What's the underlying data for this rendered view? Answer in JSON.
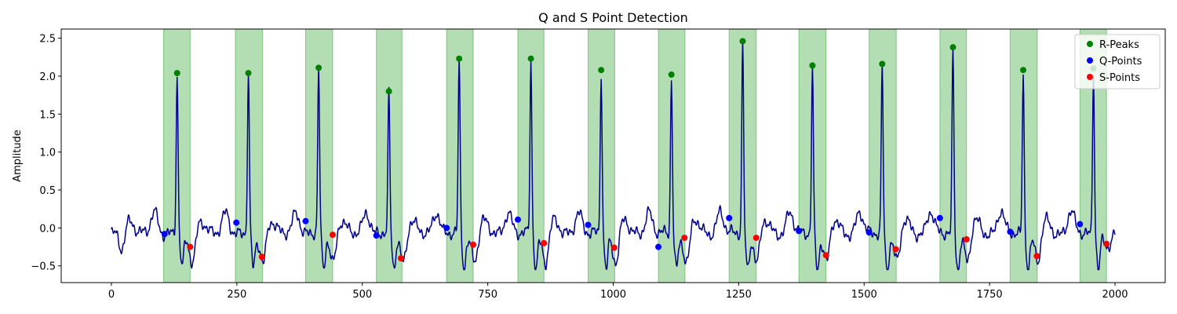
{
  "chart_data": {
    "type": "line",
    "title": "Q and S Point Detection",
    "xlabel": "",
    "ylabel": "Amplitude",
    "xlim": [
      -100,
      2100
    ],
    "ylim": [
      -0.72,
      2.62
    ],
    "xticks": [
      0,
      250,
      500,
      750,
      1000,
      1250,
      1500,
      1750,
      2000
    ],
    "yticks": [
      -0.5,
      0.0,
      0.5,
      1.0,
      1.5,
      2.0,
      2.5
    ],
    "ytick_labels": [
      "−0.5",
      "0.0",
      "0.5",
      "1.0",
      "1.5",
      "2.0",
      "2.5"
    ],
    "legend_position": "top-right",
    "colors": {
      "signal": "#00008b",
      "r_peaks": "#008000",
      "q_points": "#0000ff",
      "s_points": "#ff0000",
      "qrs_band": "#2ca02c"
    },
    "qrs_regions": [
      [
        104,
        157
      ],
      [
        247,
        301
      ],
      [
        387,
        441
      ],
      [
        528,
        579
      ],
      [
        668,
        721
      ],
      [
        810,
        862
      ],
      [
        950,
        1003
      ],
      [
        1090,
        1143
      ],
      [
        1231,
        1285
      ],
      [
        1370,
        1424
      ],
      [
        1510,
        1564
      ],
      [
        1651,
        1704
      ],
      [
        1791,
        1845
      ],
      [
        1930,
        1983
      ]
    ],
    "series": [
      {
        "name": "R-Peaks",
        "marker": "o",
        "points": [
          [
            131,
            2.04
          ],
          [
            273,
            2.04
          ],
          [
            413,
            2.11
          ],
          [
            553,
            1.8
          ],
          [
            693,
            2.23
          ],
          [
            836,
            2.23
          ],
          [
            976,
            2.08
          ],
          [
            1116,
            2.02
          ],
          [
            1258,
            2.46
          ],
          [
            1397,
            2.14
          ],
          [
            1536,
            2.16
          ],
          [
            1677,
            2.38
          ],
          [
            1817,
            2.08
          ],
          [
            1957,
            2.1
          ]
        ]
      },
      {
        "name": "Q-Points",
        "marker": "o",
        "points": [
          [
            106,
            -0.08
          ],
          [
            249,
            0.07
          ],
          [
            387,
            0.09
          ],
          [
            528,
            -0.1
          ],
          [
            668,
            0.0
          ],
          [
            810,
            0.11
          ],
          [
            950,
            0.04
          ],
          [
            1090,
            -0.25
          ],
          [
            1231,
            0.13
          ],
          [
            1370,
            -0.04
          ],
          [
            1510,
            -0.06
          ],
          [
            1651,
            0.13
          ],
          [
            1791,
            -0.05
          ],
          [
            1930,
            0.05
          ]
        ]
      },
      {
        "name": "S-Points",
        "marker": "o",
        "points": [
          [
            157,
            -0.25
          ],
          [
            300,
            -0.38
          ],
          [
            441,
            -0.09
          ],
          [
            577,
            -0.4
          ],
          [
            721,
            -0.22
          ],
          [
            862,
            -0.2
          ],
          [
            1002,
            -0.26
          ],
          [
            1142,
            -0.13
          ],
          [
            1285,
            -0.13
          ],
          [
            1424,
            -0.36
          ],
          [
            1563,
            -0.28
          ],
          [
            1704,
            -0.15
          ],
          [
            1844,
            -0.37
          ],
          [
            1983,
            -0.21
          ]
        ]
      }
    ]
  }
}
